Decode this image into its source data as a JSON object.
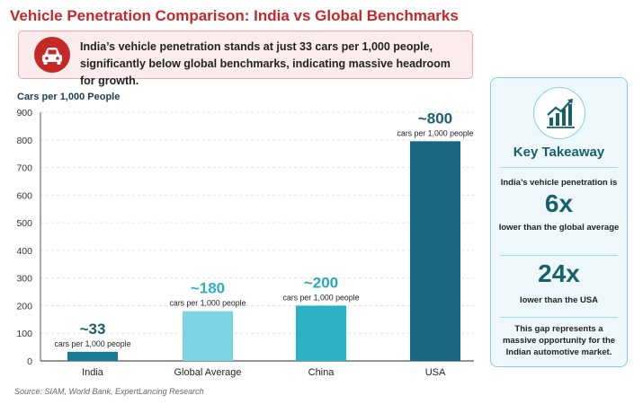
{
  "title": "Vehicle Penetration Comparison: India vs Global Benchmarks",
  "callout": {
    "icon": "car-icon",
    "line1": "India’s vehicle penetration stands at just 33 cars per 1,000 people,",
    "line2": "significantly below global benchmarks, indicating massive headroom for growth."
  },
  "chart_data": {
    "type": "bar",
    "ylabel": "Cars per 1,000 People",
    "xlabel": "",
    "ylim": [
      0,
      900
    ],
    "yticks": [
      0,
      100,
      200,
      300,
      400,
      500,
      600,
      700,
      800,
      900
    ],
    "grid": true,
    "categories": [
      "India",
      "Global Average",
      "China",
      "USA"
    ],
    "values": [
      33,
      180,
      200,
      795
    ],
    "value_labels": [
      "~33",
      "~180",
      "~200",
      "~800"
    ],
    "unit_label": "cars per 1,000 people",
    "colors": [
      "#1a7a93",
      "#7dd3e3",
      "#2bb1c3",
      "#17687f"
    ],
    "label_colors": [
      "#17606e",
      "#2bb1c3",
      "#2aa6b8",
      "#17606e"
    ]
  },
  "source": "Source: SIAM, World Bank, ExpertLancing Research",
  "takeaway": {
    "icon": "growth-chart-icon",
    "title": "Key Takeaway",
    "intro": "India’s vehicle penetration is",
    "stat1": "6x",
    "stat1_text": "lower than the global average",
    "stat2": "24x",
    "stat2_text": "lower than the USA",
    "conclusion": "This gap represents a massive opportunity for the Indian automotive market."
  },
  "colors": {
    "title": "#c62828",
    "accent": "#17606e",
    "callout_bg": "#fdecec"
  }
}
